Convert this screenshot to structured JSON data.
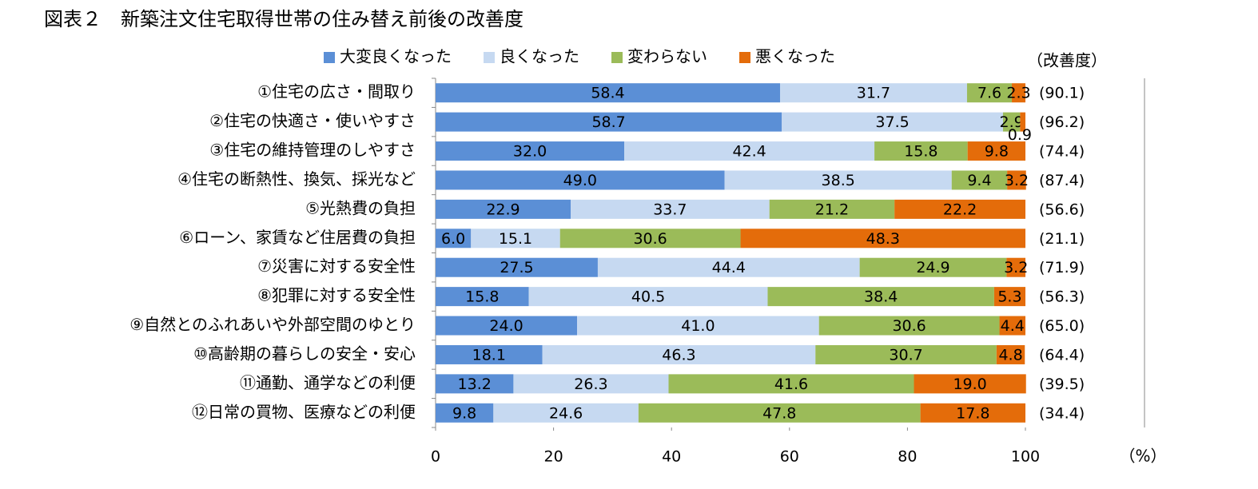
{
  "chart_data": {
    "type": "stacked-barh",
    "title": "図表２　新築注文住宅取得世帯の住み替え前後の改善度",
    "categories": [
      "①住宅の広さ・間取り",
      "②住宅の快適さ・使いやすさ",
      "③住宅の維持管理のしやすさ",
      "④住宅の断熱性、換気、採光など",
      "⑤光熱費の負担",
      "⑥ローン、家賃など住居費の負担",
      "⑦災害に対する安全性",
      "⑧犯罪に対する安全性",
      "⑨自然とのふれあいや外部空間のゆとり",
      "⑩高齢期の暮らしの安全・安心",
      "⑪通勤、通学などの利便",
      "⑫日常の買物、医療などの利便"
    ],
    "series": [
      {
        "name": "大変良くなった",
        "color": "#5b8fd6",
        "values": [
          58.4,
          58.7,
          32.0,
          49.0,
          22.9,
          6.0,
          27.5,
          15.8,
          24.0,
          18.1,
          13.2,
          9.8
        ],
        "value_labels": [
          "58.4",
          "58.7",
          "32.0",
          "49.0",
          "22.9",
          "6.0",
          "27.5",
          "15.8",
          "24.0",
          "18.1",
          "13.2",
          "9.8"
        ]
      },
      {
        "name": "良くなった",
        "color": "#c6d9f1",
        "values": [
          31.7,
          37.5,
          42.4,
          38.5,
          33.7,
          15.1,
          44.4,
          40.5,
          41.0,
          46.3,
          26.3,
          24.6
        ],
        "value_labels": [
          "31.7",
          "37.5",
          "42.4",
          "38.5",
          "33.7",
          "15.1",
          "44.4",
          "40.5",
          "41.0",
          "46.3",
          "26.3",
          "24.6"
        ]
      },
      {
        "name": "変わらない",
        "color": "#9bbb59",
        "values": [
          7.6,
          2.9,
          15.8,
          9.4,
          21.2,
          30.6,
          24.9,
          38.4,
          30.6,
          30.7,
          41.6,
          47.8
        ],
        "value_labels": [
          "7.6",
          "2.9",
          "15.8",
          "9.4",
          "21.2",
          "30.6",
          "24.9",
          "38.4",
          "30.6",
          "30.7",
          "41.6",
          "47.8"
        ]
      },
      {
        "name": "悪くなった",
        "color": "#e46c0a",
        "values": [
          2.3,
          0.9,
          9.8,
          3.2,
          22.2,
          48.3,
          3.2,
          5.3,
          4.4,
          4.8,
          19.0,
          17.8
        ],
        "value_labels": [
          "2.3",
          "0.9",
          "9.8",
          "3.2",
          "22.2",
          "48.3",
          "3.2",
          "5.3",
          "4.4",
          "4.8",
          "19.0",
          "17.8"
        ]
      }
    ],
    "improvement_title": "（改善度）",
    "improvement_labels": [
      "(90.1)",
      "(96.2)",
      "(74.4)",
      "(87.4)",
      "(56.6)",
      "(21.1)",
      "(71.9)",
      "(56.3)",
      "(65.0)",
      "(64.4)",
      "(39.5)",
      "(34.4)"
    ],
    "xlim": [
      0,
      100
    ],
    "xticks": [
      0,
      20,
      40,
      60,
      80,
      100
    ],
    "x_unit": "（%）",
    "legend": "top"
  }
}
